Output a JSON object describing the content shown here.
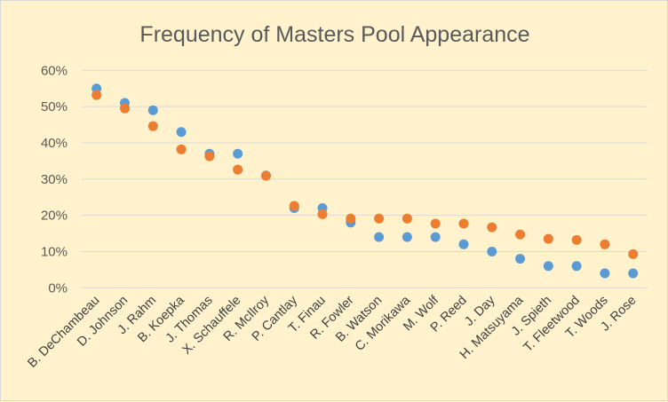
{
  "chart_data": {
    "type": "scatter",
    "title": "Frequency of Masters Pool Appearance",
    "xlabel": "",
    "ylabel": "",
    "ylim": [
      0,
      0.6
    ],
    "yticks": [
      "0%",
      "10%",
      "20%",
      "30%",
      "40%",
      "50%",
      "60%"
    ],
    "grid": true,
    "legend": "none",
    "categories": [
      "B. DeChambeau",
      "D. Johnson",
      "J. Rahm",
      "B. Koepka",
      "J. Thomas",
      "X. Schauffele",
      "R. McIlroy",
      "P. Cantlay",
      "T. Finau",
      "R. Fowler",
      "B. Watson",
      "C. Morikawa",
      "M. Wolf",
      "P. Reed",
      "J. Day",
      "H. Matsuyama",
      "J. Spieth",
      "T. Fleetwood",
      "T. Woods",
      "J. Rose"
    ],
    "series": [
      {
        "color": "#5b9bd5",
        "values": [
          0.55,
          0.51,
          0.49,
          0.43,
          0.37,
          0.37,
          0.31,
          0.22,
          0.22,
          0.18,
          0.14,
          0.14,
          0.14,
          0.12,
          0.1,
          0.08,
          0.06,
          0.06,
          0.04,
          0.04
        ]
      },
      {
        "color": "#ed7d31",
        "values": [
          0.532,
          0.495,
          0.446,
          0.382,
          0.363,
          0.326,
          0.309,
          0.226,
          0.203,
          0.191,
          0.191,
          0.191,
          0.177,
          0.177,
          0.167,
          0.147,
          0.135,
          0.132,
          0.12,
          0.093
        ]
      }
    ]
  }
}
